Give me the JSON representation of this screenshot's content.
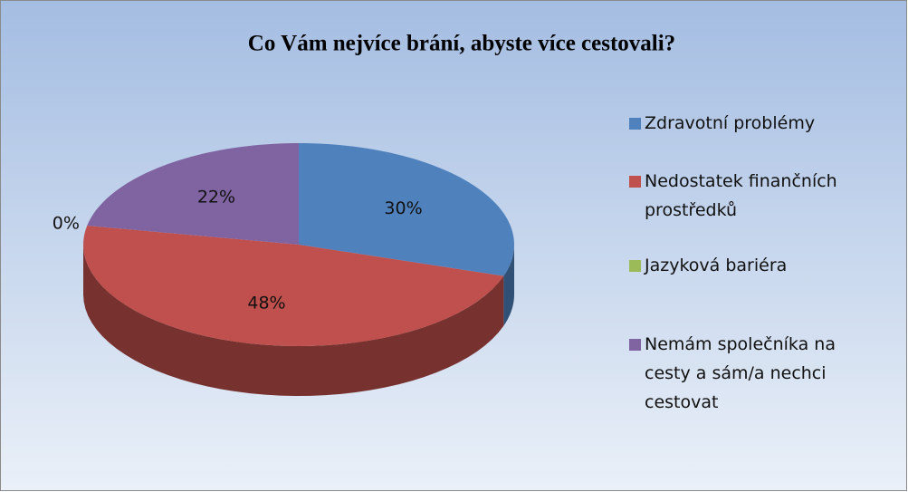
{
  "chart_data": {
    "type": "pie3d",
    "title": "Co Vám nejvíce brání, abyste více cestovali?",
    "categories": [
      "Zdravotní problémy",
      "Nedostatek finančních prostředků",
      "Jazyková bariéra",
      "Nemám společníka na cesty a sám/a nechci cestovat"
    ],
    "values": [
      30,
      48,
      0,
      22
    ],
    "value_labels": [
      "30%",
      "48%",
      "0%",
      "22%"
    ],
    "colors": [
      "#4f81bd",
      "#c0504d",
      "#9bbb59",
      "#8064a2"
    ],
    "legend": "right"
  }
}
